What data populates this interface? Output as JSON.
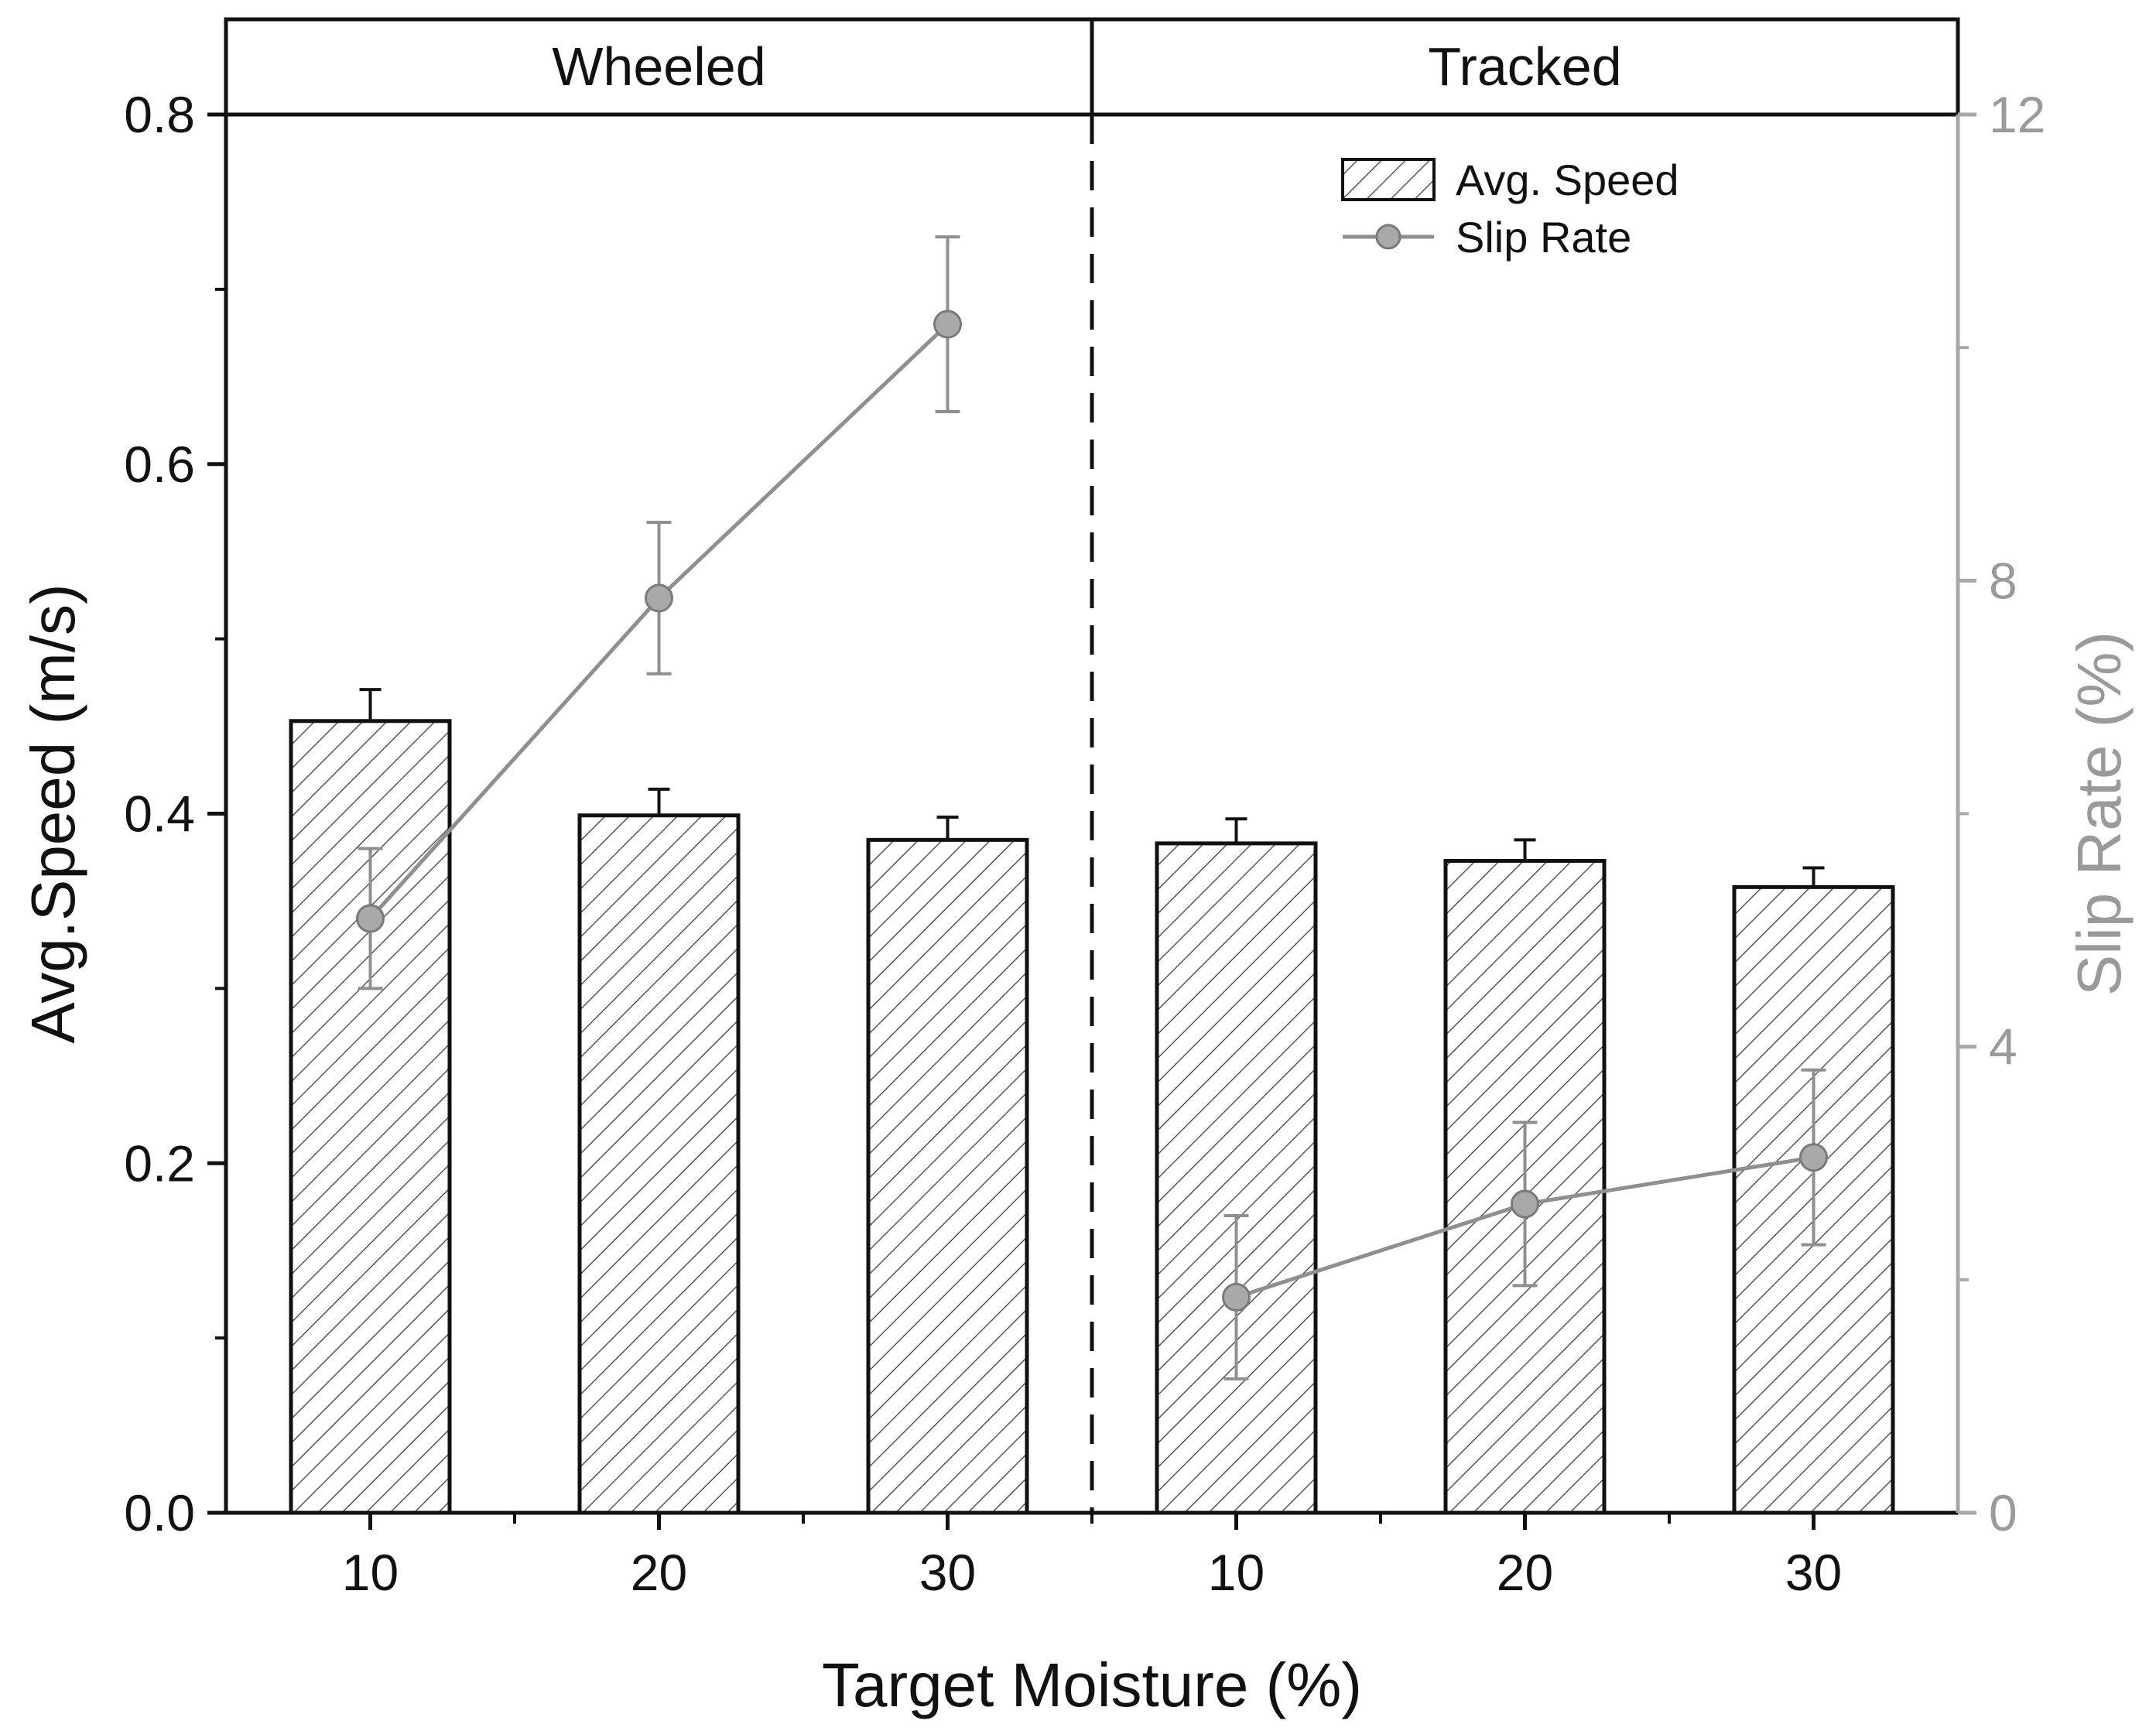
{
  "chart_data": {
    "type": "bar",
    "xlabel": "Target Moisture (%)",
    "ylabel": "Avg.Speed (m/s)",
    "y2label": "Slip Rate (%)",
    "ylim": [
      0,
      0.8
    ],
    "y2lim": [
      0,
      12
    ],
    "yticks": [
      "0.0",
      "0.2",
      "0.4",
      "0.6",
      "0.8"
    ],
    "y2ticks": [
      "0",
      "4",
      "8",
      "12"
    ],
    "panels": [
      "Wheeled",
      "Tracked"
    ],
    "categories": [
      "10",
      "20",
      "30",
      "10",
      "20",
      "30"
    ],
    "category_panel": [
      "Wheeled",
      "Wheeled",
      "Wheeled",
      "Tracked",
      "Tracked",
      "Tracked"
    ],
    "series": [
      {
        "name": "Avg. Speed",
        "kind": "bar",
        "axis": "left",
        "pattern": "hatched",
        "values": [
          0.453,
          0.399,
          0.385,
          0.383,
          0.373,
          0.358
        ],
        "errors": [
          0.018,
          0.015,
          0.013,
          0.014,
          0.012,
          0.011
        ]
      },
      {
        "name": "Slip Rate",
        "kind": "line",
        "axis": "right",
        "segments_by_panel": true,
        "values": [
          5.1,
          7.85,
          10.2,
          1.85,
          2.65,
          3.05
        ],
        "errors": [
          0.6,
          0.65,
          0.75,
          0.7,
          0.7,
          0.75
        ]
      }
    ],
    "legend": {
      "position": "top-right",
      "entries": [
        "Avg. Speed",
        "Slip Rate"
      ]
    },
    "colors": {
      "axis": "#111111",
      "slip": "#8f8f8f",
      "right_axis": "#a8a8a8",
      "hatch": "#555555"
    }
  }
}
